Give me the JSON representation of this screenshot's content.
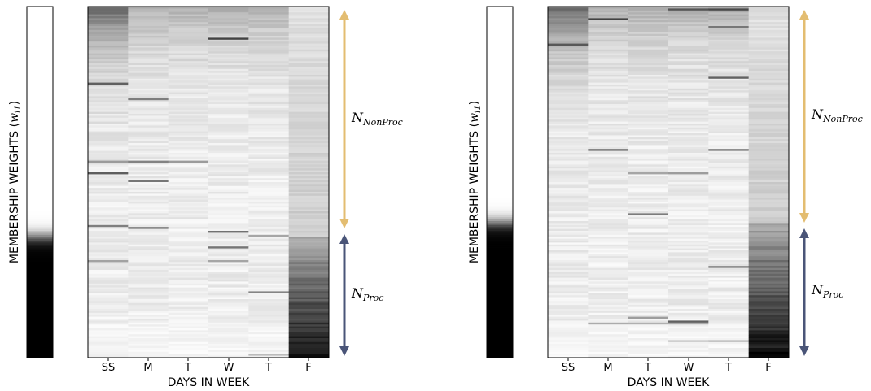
{
  "chart_data": [
    {
      "type": "heatmap",
      "panel": "left",
      "ylabel_prefix": "MEMBERSHIP WEIGHTS (",
      "ylabel_var": "w",
      "ylabel_sub": "i1",
      "ylabel_suffix": ")",
      "xlabel": "DAYS IN WEEK",
      "x_categories": [
        "SS",
        "M",
        "T",
        "W",
        "T",
        "F"
      ],
      "colormap": "grays (white = 0, black = 1)",
      "rows": 180,
      "weight_bar": {
        "transition_fraction": 0.655,
        "values": "0 above transition, 1 below"
      },
      "annotations": [
        {
          "var": "N",
          "sub": "NonProc",
          "color": "#e3bd71",
          "span_fraction": [
            0.0,
            0.63
          ]
        },
        {
          "var": "N",
          "sub": "Proc",
          "color": "#4a5578",
          "span_fraction": [
            0.655,
            1.0
          ]
        }
      ]
    },
    {
      "type": "heatmap",
      "panel": "right",
      "ylabel_prefix": "MEMBERSHIP WEIGHTS (",
      "ylabel_var": "w",
      "ylabel_sub": "i1",
      "ylabel_suffix": ")",
      "xlabel": "DAYS IN WEEK",
      "x_categories": [
        "SS",
        "M",
        "T",
        "W",
        "T",
        "F"
      ],
      "colormap": "grays (white = 0, black = 1)",
      "rows": 180,
      "weight_bar": {
        "transition_fraction": 0.615,
        "values": "0 above transition, 1 below"
      },
      "annotations": [
        {
          "var": "N",
          "sub": "NonProc",
          "color": "#e3bd71",
          "span_fraction": [
            0.0,
            0.61
          ]
        },
        {
          "var": "N",
          "sub": "Proc",
          "color": "#4a5578",
          "span_fraction": [
            0.63,
            1.0
          ]
        }
      ]
    }
  ]
}
